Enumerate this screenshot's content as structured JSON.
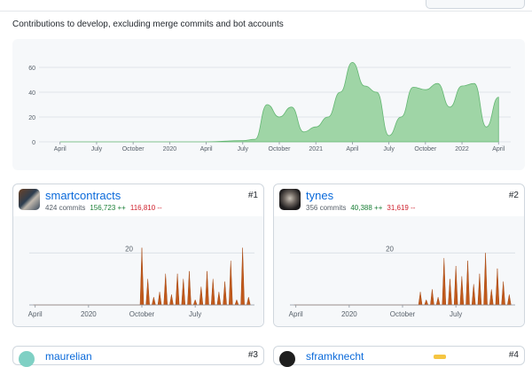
{
  "subtitle": "Contributions to develop, excluding merge commits and bot accounts",
  "colors": {
    "overview_fill": "#9fd5a6",
    "overview_stroke": "#63b672",
    "contributor_fill": "#c15a1c",
    "link": "#0969da",
    "additions": "#1a7f37",
    "deletions": "#cf222e"
  },
  "overview": {
    "y_ticks": [
      "0",
      "20",
      "40",
      "60"
    ],
    "x_ticks": [
      "April",
      "July",
      "October",
      "2020",
      "April",
      "July",
      "October",
      "2021",
      "April",
      "July",
      "October",
      "2022",
      "April"
    ]
  },
  "contributors": [
    {
      "name": "smartcontracts",
      "commits": "424 commits",
      "additions": "156,723 ++",
      "deletions": "116,810 --",
      "rank": "#1",
      "avatar_icon": "avatar-smartcontracts",
      "y_tick": "20",
      "x_ticks": [
        "April",
        "2020",
        "October",
        "July"
      ]
    },
    {
      "name": "tynes",
      "commits": "356 commits",
      "additions": "40,388 ++",
      "deletions": "31,619 --",
      "rank": "#2",
      "avatar_icon": "avatar-tynes",
      "y_tick": "20",
      "x_ticks": [
        "April",
        "2020",
        "October",
        "July"
      ]
    },
    {
      "name": "maurelian",
      "rank": "#3",
      "avatar_icon": "avatar-maurelian"
    },
    {
      "name": "sframknecht",
      "rank": "#4",
      "avatar_icon": "avatar-sframknecht"
    }
  ],
  "chart_data": [
    {
      "type": "area",
      "title": "",
      "ylim": [
        0,
        70
      ],
      "x_range": [
        "2019-03",
        "2022-05"
      ],
      "series": [
        {
          "x": [
            "2019-04",
            "2019-07",
            "2019-10",
            "2020-01",
            "2020-04",
            "2020-07",
            "2020-08",
            "2020-09",
            "2020-10",
            "2020-11",
            "2020-12",
            "2021-01",
            "2021-02",
            "2021-03",
            "2021-04",
            "2021-05",
            "2021-06",
            "2021-07",
            "2021-08",
            "2021-09",
            "2021-10",
            "2021-11",
            "2021-12",
            "2022-01",
            "2022-02",
            "2022-03",
            "2022-04"
          ],
          "values": [
            0,
            0,
            0,
            0,
            0,
            1,
            2,
            30,
            20,
            28,
            8,
            12,
            20,
            40,
            64,
            45,
            40,
            5,
            20,
            44,
            42,
            47,
            28,
            45,
            47,
            12,
            36
          ]
        }
      ]
    },
    {
      "type": "area",
      "title": "smartcontracts",
      "ylim": [
        0,
        30
      ],
      "series": [
        {
          "x": [
            "2019-04",
            "2019-10",
            "2020-01",
            "2020-04",
            "2020-07",
            "2020-10",
            "2020-11",
            "2020-12",
            "2021-01",
            "2021-02",
            "2021-03",
            "2021-04",
            "2021-05",
            "2021-06",
            "2021-07",
            "2021-08",
            "2021-09",
            "2021-10",
            "2021-11",
            "2021-12",
            "2022-01",
            "2022-02",
            "2022-03",
            "2022-04"
          ],
          "values": [
            0,
            0,
            0,
            0,
            0,
            22,
            10,
            3,
            5,
            12,
            4,
            12,
            10,
            13,
            2,
            7,
            13,
            10,
            5,
            9,
            17,
            2,
            22,
            3
          ]
        }
      ]
    },
    {
      "type": "area",
      "title": "tynes",
      "ylim": [
        0,
        30
      ],
      "series": [
        {
          "x": [
            "2019-04",
            "2019-10",
            "2020-01",
            "2020-04",
            "2020-07",
            "2020-10",
            "2020-11",
            "2020-12",
            "2021-01",
            "2021-02",
            "2021-03",
            "2021-04",
            "2021-05",
            "2021-06",
            "2021-07",
            "2021-08",
            "2021-09",
            "2021-10",
            "2021-11",
            "2021-12",
            "2022-01",
            "2022-02",
            "2022-03",
            "2022-04"
          ],
          "values": [
            0,
            0,
            0,
            0,
            0,
            0,
            0,
            0,
            5,
            2,
            6,
            3,
            18,
            10,
            15,
            11,
            17,
            8,
            12,
            20,
            6,
            14,
            9,
            4
          ]
        }
      ]
    }
  ]
}
